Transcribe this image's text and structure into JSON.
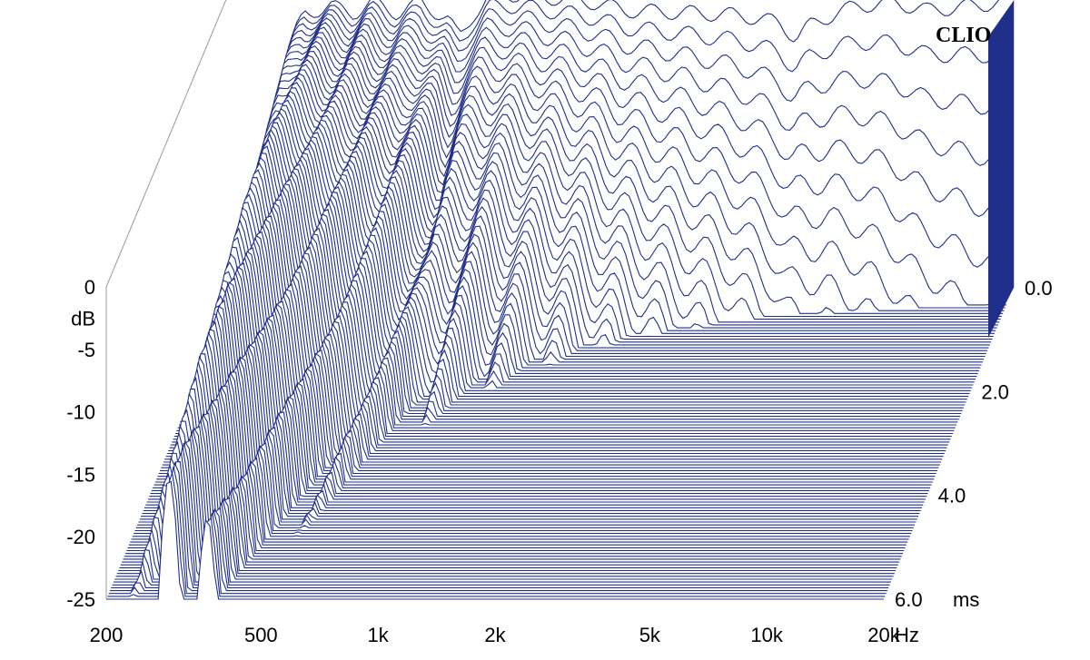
{
  "brand": "CLIO",
  "chart_data": {
    "type": "waterfall",
    "x_label_unit": "Hz",
    "x_ticks": [
      {
        "value": 200,
        "label": "200"
      },
      {
        "value": 500,
        "label": "500"
      },
      {
        "value": 1000,
        "label": "1k"
      },
      {
        "value": 2000,
        "label": "2k"
      },
      {
        "value": 5000,
        "label": "5k"
      },
      {
        "value": 10000,
        "label": "10k"
      },
      {
        "value": 20000,
        "label": "20k"
      }
    ],
    "x_range": [
      200,
      20000
    ],
    "x_scale": "log",
    "y_label": "dB",
    "y_ticks": [
      0,
      -5,
      -10,
      -15,
      -20,
      -25
    ],
    "y_range": [
      -25,
      0
    ],
    "t_label_unit": "ms",
    "t_ticks": [
      {
        "value": 0,
        "label": "0.0"
      },
      {
        "value": 2,
        "label": "2.0"
      },
      {
        "value": 4,
        "label": "4.0"
      },
      {
        "value": 6,
        "label": "6.0"
      }
    ],
    "t_range": [
      0,
      6
    ],
    "num_slices": 110,
    "line_color": "#1f2f8a",
    "initial_response_db": [
      {
        "f": 200,
        "db": -25
      },
      {
        "f": 240,
        "db": -14
      },
      {
        "f": 280,
        "db": -5
      },
      {
        "f": 300,
        "db": -3
      },
      {
        "f": 350,
        "db": -2.5
      },
      {
        "f": 400,
        "db": -3
      },
      {
        "f": 450,
        "db": -2.2
      },
      {
        "f": 520,
        "db": -3
      },
      {
        "f": 600,
        "db": -2.2
      },
      {
        "f": 700,
        "db": -3.5
      },
      {
        "f": 750,
        "db": -5
      },
      {
        "f": 820,
        "db": -3
      },
      {
        "f": 900,
        "db": -1.8
      },
      {
        "f": 1000,
        "db": -1.5
      },
      {
        "f": 1300,
        "db": -1.8
      },
      {
        "f": 1700,
        "db": -2.2
      },
      {
        "f": 2000,
        "db": -2.8
      },
      {
        "f": 3000,
        "db": -3
      },
      {
        "f": 4000,
        "db": -3.2
      },
      {
        "f": 5000,
        "db": -3.8
      },
      {
        "f": 5500,
        "db": -5
      },
      {
        "f": 6000,
        "db": -4
      },
      {
        "f": 7000,
        "db": -3
      },
      {
        "f": 8000,
        "db": -2.4
      },
      {
        "f": 10000,
        "db": -2.2
      },
      {
        "f": 12000,
        "db": -2.8
      },
      {
        "f": 15000,
        "db": -2.5
      },
      {
        "f": 18000,
        "db": -2.2
      },
      {
        "f": 20000,
        "db": -2
      }
    ]
  }
}
